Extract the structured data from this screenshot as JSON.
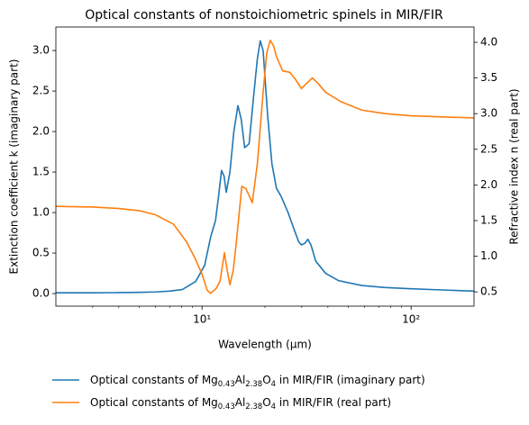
{
  "chart_data": {
    "type": "line",
    "title": "Optical constants of nonstoichiometric spinels in MIR/FIR",
    "xlabel": "Wavelength (μm)",
    "ylabel": "Extinction coefficient k (imaginary part)",
    "y2label": "Refractive index n (real part)",
    "xscale": "log",
    "xlim": [
      2,
      200
    ],
    "xticks": [
      {
        "value": 10,
        "label": "10¹"
      },
      {
        "value": 100,
        "label": "10²"
      }
    ],
    "xminorticks": [
      3,
      4,
      5,
      6,
      7,
      8,
      9,
      20,
      30,
      40,
      50,
      60,
      70,
      80,
      90
    ],
    "ylim": [
      -0.155,
      3.29
    ],
    "yticks": [
      {
        "value": 0,
        "label": "0.0"
      },
      0.5,
      {
        "value": 1,
        "label": "1.0"
      },
      1.5,
      {
        "value": 2,
        "label": "2.0"
      },
      2.5,
      {
        "value": 3,
        "label": "3.0"
      }
    ],
    "y2lim": [
      0.3,
      4.215
    ],
    "y2ticks": [
      0.5,
      {
        "value": 1,
        "label": "1.0"
      },
      1.5,
      {
        "value": 2,
        "label": "2.0"
      },
      2.5,
      {
        "value": 3,
        "label": "3.0"
      },
      3.5,
      {
        "value": 4,
        "label": "4.0"
      }
    ],
    "legend": "lower center",
    "series": [
      {
        "name": "Optical constants of Mg0.43Al2.38O4 in MIR/FIR (imaginary part)",
        "color": "#1f77b4",
        "axis": "y",
        "x": [
          2,
          3,
          4,
          5,
          6,
          7,
          8.05,
          9.33,
          10.3,
          11.0,
          11.6,
          12.0,
          12.4,
          12.75,
          13.06,
          13.6,
          14.2,
          14.85,
          15.4,
          16.0,
          16.8,
          17.6,
          18.4,
          19.0,
          19.6,
          20.6,
          21.6,
          22.7,
          23.9,
          25.8,
          27.5,
          29.0,
          29.9,
          31.0,
          32.1,
          33.2,
          35,
          39,
          45,
          58,
          75,
          100,
          140,
          200
        ],
        "values": [
          0.01,
          0.01,
          0.012,
          0.015,
          0.02,
          0.03,
          0.05,
          0.15,
          0.35,
          0.7,
          0.9,
          1.2,
          1.52,
          1.45,
          1.25,
          1.5,
          2.0,
          2.32,
          2.15,
          1.8,
          1.85,
          2.4,
          2.9,
          3.12,
          3.0,
          2.2,
          1.6,
          1.3,
          1.2,
          1.0,
          0.8,
          0.64,
          0.6,
          0.62,
          0.67,
          0.6,
          0.4,
          0.25,
          0.16,
          0.1,
          0.075,
          0.06,
          0.045,
          0.03
        ]
      },
      {
        "name": "Optical constants of Mg0.43Al2.38O4 in MIR/FIR (real part)",
        "color": "#ff7f0e",
        "axis": "y2",
        "x": [
          2,
          3,
          4,
          5,
          6,
          7.3,
          8.45,
          9.33,
          10.0,
          10.6,
          11.0,
          11.4,
          11.7,
          12.2,
          12.8,
          13.2,
          13.6,
          14.1,
          14.6,
          15.5,
          16.2,
          17.4,
          18.4,
          19.6,
          20.4,
          21.2,
          22.0,
          22.7,
          24.3,
          26.3,
          28,
          29.9,
          31.5,
          33.7,
          36,
          39,
          46,
          58,
          75,
          100,
          140,
          200
        ],
        "values": [
          1.7,
          1.69,
          1.67,
          1.64,
          1.58,
          1.45,
          1.2,
          0.95,
          0.75,
          0.52,
          0.48,
          0.52,
          0.55,
          0.65,
          1.05,
          0.8,
          0.6,
          0.8,
          1.2,
          1.98,
          1.95,
          1.75,
          2.3,
          3.3,
          3.85,
          4.03,
          3.95,
          3.8,
          3.6,
          3.58,
          3.48,
          3.35,
          3.42,
          3.5,
          3.42,
          3.3,
          3.17,
          3.05,
          3.0,
          2.97,
          2.955,
          2.94
        ]
      }
    ]
  }
}
